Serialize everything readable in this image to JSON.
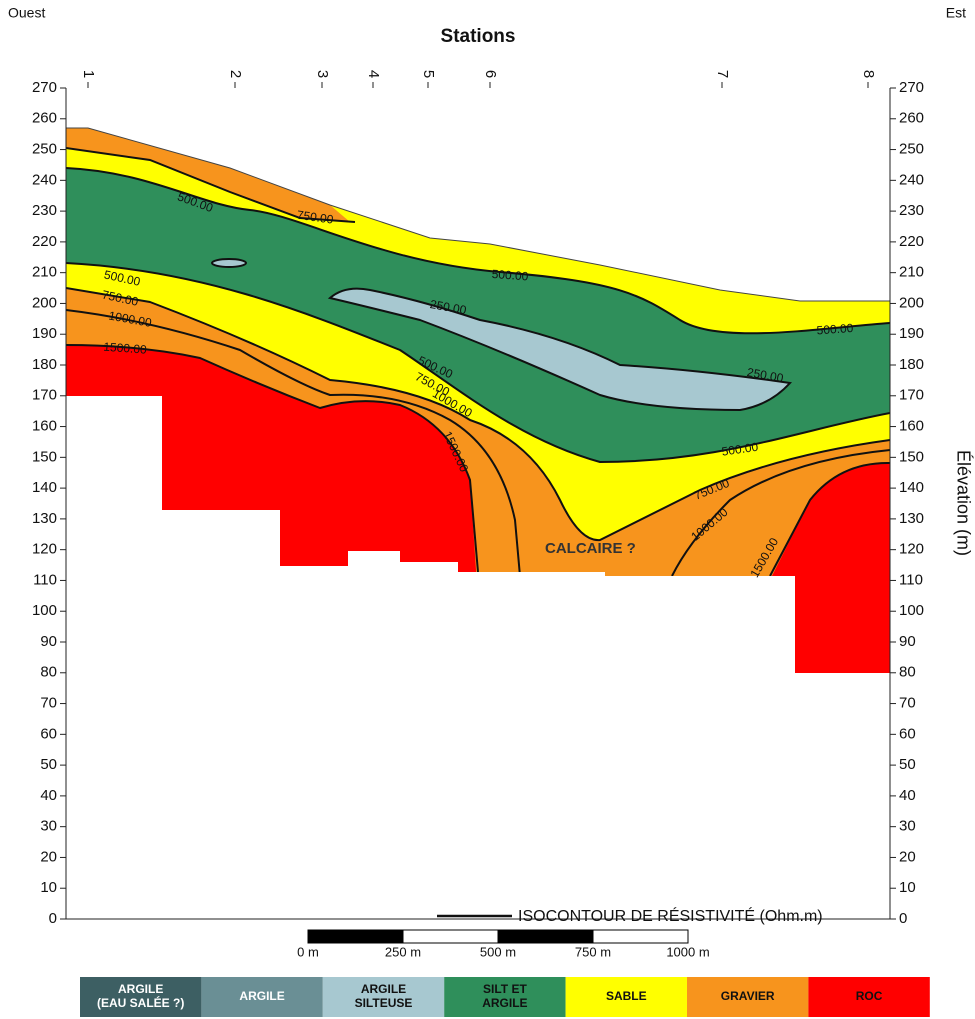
{
  "chart_data": {
    "type": "section",
    "title": "Stations",
    "left_label": "Ouest",
    "right_label": "Est",
    "y2_axis_label": "Élévation (m)",
    "stations": [
      "1",
      "2",
      "3",
      "4",
      "5",
      "6",
      "7",
      "8"
    ],
    "ylim": [
      0,
      270
    ],
    "yticks": [
      0,
      10,
      20,
      30,
      40,
      50,
      60,
      70,
      80,
      90,
      100,
      110,
      120,
      130,
      140,
      150,
      160,
      170,
      180,
      190,
      200,
      210,
      220,
      230,
      240,
      250,
      260,
      270
    ],
    "y2lim": [
      0,
      270
    ],
    "y2ticks": [
      0,
      10,
      20,
      30,
      40,
      50,
      60,
      70,
      80,
      90,
      100,
      110,
      120,
      130,
      140,
      150,
      160,
      170,
      180,
      190,
      200,
      210,
      220,
      230,
      240,
      250,
      260,
      270
    ],
    "contour_labels": [
      "500.00",
      "750.00",
      "500.00",
      "250.00",
      "500.00",
      "750.00",
      "1000.00",
      "1500.00",
      "500.00",
      "750.00",
      "1000.00",
      "1500.00",
      "250.00",
      "500.00",
      "500.00",
      "750.00",
      "1000.00",
      "1500.00"
    ],
    "annotation": "CALCAIRE ?",
    "contour_legend": "ISOCONTOUR DE RÉSISTIVITÉ (Ohm.m)",
    "scale_bar": [
      "0 m",
      "250 m",
      "500 m",
      "750 m",
      "1000 m"
    ],
    "legend": [
      {
        "lines": [
          "ARGILE",
          "(EAU SALÉE ?)"
        ],
        "color": "#3d5f63"
      },
      {
        "lines": [
          "ARGILE"
        ],
        "color": "#6a8f95"
      },
      {
        "lines": [
          "ARGILE",
          "SILTEUSE"
        ],
        "color": "#a7c8d0"
      },
      {
        "lines": [
          "SILT ET",
          "ARGILE"
        ],
        "color": "#2f8f5b"
      },
      {
        "lines": [
          "SABLE"
        ],
        "color": "#ffff00"
      },
      {
        "lines": [
          "GRAVIER"
        ],
        "color": "#f7941d"
      },
      {
        "lines": [
          "ROC"
        ],
        "color": "#ff0000"
      }
    ]
  }
}
